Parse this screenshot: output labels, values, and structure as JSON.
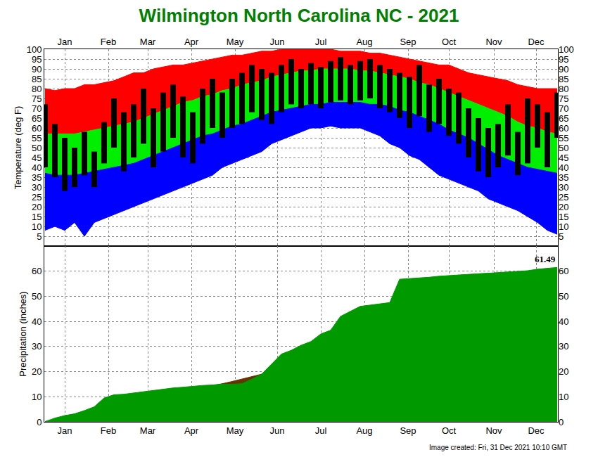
{
  "chart_data": [
    {
      "type": "band",
      "title": "Wilmington North Carolina NC - 2021",
      "ylabel": "Temperature (deg F)",
      "x": [
        1,
        8,
        15,
        22,
        29,
        36,
        43,
        50,
        57,
        64,
        71,
        78,
        85,
        92,
        99,
        106,
        113,
        120,
        127,
        134,
        141,
        148,
        155,
        162,
        169,
        176,
        183,
        190,
        197,
        204,
        211,
        218,
        225,
        232,
        239,
        246,
        253,
        260,
        267,
        274,
        281,
        288,
        295,
        302,
        309,
        316,
        323,
        330,
        337,
        344,
        351,
        358,
        365
      ],
      "series": [
        {
          "type": "line",
          "color": "#0000ff",
          "values": [
            8,
            10,
            8,
            12,
            5,
            12,
            14,
            16,
            18,
            20,
            22,
            24,
            26,
            28,
            30,
            32,
            34,
            36,
            40,
            42,
            44,
            46,
            48,
            52,
            54,
            56,
            58,
            60,
            60,
            61,
            60,
            60,
            60,
            58,
            56,
            52,
            50,
            46,
            44,
            40,
            36,
            34,
            32,
            30,
            28,
            24,
            22,
            20,
            18,
            15,
            12,
            8,
            6
          ]
        },
        {
          "type": "area",
          "color": "#0000ff",
          "values": [
            37,
            36,
            36,
            36,
            37,
            38,
            39,
            40,
            41,
            42,
            44,
            46,
            48,
            50,
            52,
            54,
            56,
            57,
            59,
            61,
            62,
            64,
            66,
            68,
            69,
            70,
            71,
            72,
            72,
            73,
            73,
            73,
            73,
            72,
            72,
            71,
            69,
            68,
            66,
            64,
            62,
            59,
            57,
            55,
            52,
            49,
            46,
            44,
            42,
            40,
            39,
            38,
            37
          ]
        },
        {
          "type": "area",
          "color": "#00ee00",
          "values": [
            57,
            57,
            57,
            57,
            58,
            59,
            60,
            61,
            62,
            63,
            65,
            67,
            69,
            71,
            73,
            74,
            76,
            77,
            79,
            80,
            82,
            83,
            84,
            86,
            87,
            88,
            89,
            89,
            90,
            90,
            90,
            90,
            89,
            89,
            88,
            87,
            86,
            85,
            83,
            82,
            80,
            78,
            76,
            74,
            72,
            70,
            68,
            66,
            63,
            61,
            60,
            58,
            57
          ]
        },
        {
          "type": "area",
          "color": "#ff0000",
          "values": [
            80,
            79,
            80,
            80,
            82,
            82,
            83,
            84,
            86,
            88,
            88,
            90,
            91,
            92,
            92,
            93,
            94,
            95,
            96,
            97,
            97,
            98,
            99,
            99,
            100,
            100,
            100,
            100,
            100,
            100,
            99,
            99,
            99,
            98,
            98,
            97,
            96,
            95,
            94,
            93,
            92,
            92,
            90,
            88,
            87,
            86,
            85,
            84,
            82,
            81,
            80,
            80,
            80
          ]
        },
        {
          "type": "bar",
          "color": "#000000",
          "values": [
            72,
            62,
            55,
            50,
            58,
            48,
            63,
            75,
            68,
            72,
            80,
            70,
            78,
            82,
            76,
            68,
            80,
            85,
            78,
            85,
            88,
            92,
            90,
            88,
            92,
            95,
            90,
            93,
            91,
            94,
            96,
            92,
            94,
            95,
            92,
            90,
            88,
            86,
            92,
            82,
            85,
            80,
            78,
            70,
            65,
            60,
            62,
            72,
            58,
            75,
            72,
            68,
            78
          ],
          "base": [
            40,
            35,
            28,
            30,
            36,
            30,
            42,
            50,
            38,
            45,
            52,
            40,
            48,
            55,
            45,
            42,
            52,
            60,
            55,
            60,
            62,
            68,
            64,
            62,
            68,
            72,
            70,
            72,
            70,
            73,
            74,
            72,
            74,
            75,
            70,
            68,
            65,
            60,
            66,
            58,
            62,
            56,
            52,
            45,
            38,
            35,
            40,
            46,
            36,
            42,
            50,
            40,
            55
          ]
        }
      ],
      "xlim": [
        0.5,
        365.5
      ],
      "xticks": [
        {
          "value": 15,
          "label": "Jan"
        },
        {
          "value": 46,
          "label": "Feb"
        },
        {
          "value": 74,
          "label": "Mar"
        },
        {
          "value": 105,
          "label": "Apr"
        },
        {
          "value": 136,
          "label": "May"
        },
        {
          "value": 166,
          "label": "Jun"
        },
        {
          "value": 197,
          "label": "Jul"
        },
        {
          "value": 228,
          "label": "Aug"
        },
        {
          "value": 259,
          "label": "Sep"
        },
        {
          "value": 288,
          "label": "Oct"
        },
        {
          "value": 320,
          "label": "Nov"
        },
        {
          "value": 350,
          "label": "Dec"
        }
      ],
      "ylim": [
        0,
        100
      ],
      "yticks": [
        5,
        10,
        15,
        20,
        25,
        30,
        35,
        40,
        45,
        50,
        55,
        60,
        65,
        70,
        75,
        80,
        85,
        90,
        95,
        100
      ],
      "grid": true
    },
    {
      "type": "area",
      "ylabel": "Precipitation (inches)",
      "x": [
        1,
        8,
        15,
        22,
        29,
        36,
        43,
        50,
        57,
        64,
        71,
        78,
        85,
        92,
        99,
        106,
        113,
        120,
        127,
        134,
        141,
        148,
        155,
        162,
        169,
        176,
        183,
        190,
        197,
        204,
        211,
        218,
        225,
        232,
        239,
        246,
        253,
        260,
        267,
        274,
        281,
        288,
        295,
        302,
        309,
        316,
        323,
        330,
        337,
        344,
        351,
        358,
        365
      ],
      "series": [
        {
          "type": "area",
          "color": "#663300",
          "values": [
            0.1,
            0.9,
            1.7,
            2.5,
            3.3,
            4.2,
            5.1,
            5.9,
            6.8,
            7.7,
            8.7,
            9.7,
            10.7,
            11.6,
            12.3,
            13.0,
            13.7,
            14.4,
            15.2,
            16.1,
            17.0,
            17.9,
            19.0,
            20.3,
            21.6,
            22.9,
            24.3,
            25.9,
            27.6,
            29.3,
            31.0,
            32.7,
            34.4,
            36.0,
            37.6,
            39.3,
            41.0,
            42.7,
            44.4,
            46.0,
            46.9,
            47.7,
            48.5,
            49.4,
            50.2,
            51.0,
            51.8,
            52.5,
            53.3,
            54.2,
            55.0,
            55.9,
            56.8
          ]
        },
        {
          "type": "area",
          "color": "#009900",
          "values": [
            0.1,
            1.5,
            2.5,
            3.2,
            4.5,
            6.0,
            9.5,
            10.8,
            11.0,
            11.5,
            12.2,
            12.6,
            13.0,
            13.5,
            13.8,
            14.2,
            14.5,
            14.7,
            15.0,
            15.0,
            15.2,
            17.0,
            19.0,
            23.0,
            27.0,
            28.5,
            30.5,
            32.0,
            35.0,
            36.5,
            42.0,
            44.0,
            46.0,
            46.5,
            47.0,
            47.5,
            56.8,
            57.0,
            57.3,
            57.6,
            58.0,
            58.3,
            58.5,
            58.8,
            59.0,
            59.2,
            59.4,
            59.6,
            59.8,
            60.2,
            60.8,
            61.2,
            61.49
          ]
        }
      ],
      "xlim": [
        0.5,
        365.5
      ],
      "xticks": [
        {
          "value": 15,
          "label": "Jan"
        },
        {
          "value": 46,
          "label": "Feb"
        },
        {
          "value": 74,
          "label": "Mar"
        },
        {
          "value": 105,
          "label": "Apr"
        },
        {
          "value": 136,
          "label": "May"
        },
        {
          "value": 166,
          "label": "Jun"
        },
        {
          "value": 197,
          "label": "Jul"
        },
        {
          "value": 228,
          "label": "Aug"
        },
        {
          "value": 259,
          "label": "Sep"
        },
        {
          "value": 288,
          "label": "Oct"
        },
        {
          "value": 320,
          "label": "Nov"
        },
        {
          "value": 350,
          "label": "Dec"
        }
      ],
      "ylim": [
        0,
        70
      ],
      "yticks": [
        0,
        10,
        20,
        30,
        40,
        50,
        60
      ],
      "grid": true,
      "annotations": [
        {
          "text": "61.49",
          "x": 365,
          "y": 61.49
        },
        {
          "text": "Image created: Fri, 31 Dec 2021 10:10 GMT"
        }
      ]
    }
  ]
}
